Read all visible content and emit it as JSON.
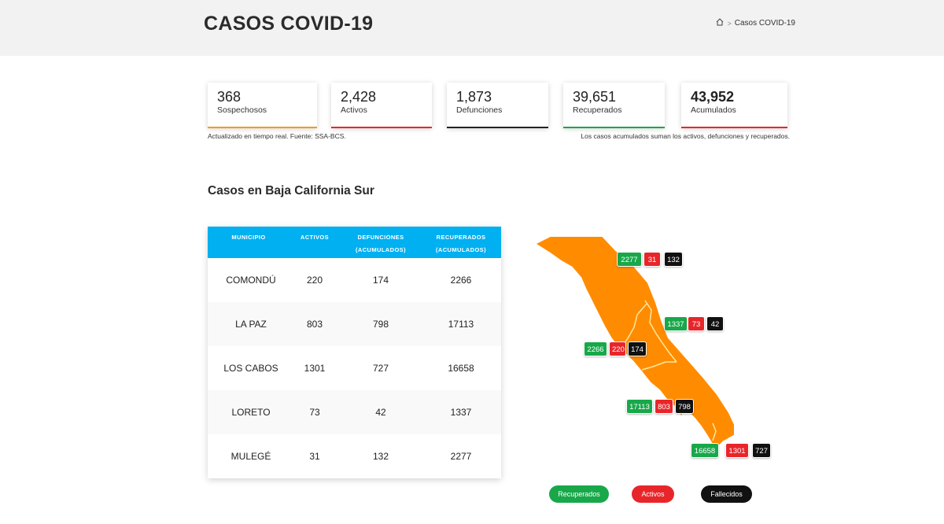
{
  "header": {
    "title": "CASOS COVID-19",
    "breadcrumb_current": "Casos COVID-19"
  },
  "stats": [
    {
      "value": "368",
      "label": "Sospechosos",
      "color": "#f39c12"
    },
    {
      "value": "2,428",
      "label": "Activos",
      "color": "#e8262a"
    },
    {
      "value": "1,873",
      "label": "Defunciones",
      "color": "#222222"
    },
    {
      "value": "39,651",
      "label": "Recuperados",
      "color": "#18a84a"
    },
    {
      "value": "43,952",
      "label": "Acumulados",
      "color": "#e8262a"
    }
  ],
  "notes": {
    "left": "Actualizado en tiempo real. Fuente: SSA-BCS.",
    "right": "Los casos acumulados suman los activos, defunciones y recuperados."
  },
  "section_title": "Casos en Baja California Sur",
  "table": {
    "headers": [
      "MUNICIPIO",
      "ACTIVOS",
      "DEFUNCIONES (ACUMULADOS)",
      "RECUPERADOS (ACUMULADOS)"
    ],
    "rows": [
      [
        "COMONDÚ",
        "220",
        "174",
        "2266"
      ],
      [
        "LA PAZ",
        "803",
        "798",
        "17113"
      ],
      [
        "LOS CABOS",
        "1301",
        "727",
        "16658"
      ],
      [
        "LORETO",
        "73",
        "42",
        "1337"
      ],
      [
        "MULEGÉ",
        "31",
        "132",
        "2277"
      ]
    ]
  },
  "map": {
    "fill_color": "#ff8c00",
    "mulege": {
      "recuperados": "2277",
      "activos": "31",
      "fallecidos": "132"
    },
    "loreto": {
      "recuperados": "1337",
      "activos": "73",
      "fallecidos": "42"
    },
    "comondu": {
      "recuperados": "2266",
      "activos": "220",
      "fallecidos": "174"
    },
    "la_paz": {
      "recuperados": "17113",
      "activos": "803",
      "fallecidos": "798"
    },
    "los_cabos": {
      "recuperados": "16658",
      "activos": "1301",
      "fallecidos": "727"
    }
  },
  "legend": {
    "recuperados": "Recuperados",
    "activos": "Activos",
    "fallecidos": "Fallecidos"
  },
  "colors": {
    "header_bg": "#f2f2f2",
    "table_header": "#00b0f0",
    "green": "#18a84a",
    "red": "#e8262a",
    "black": "#111111"
  }
}
